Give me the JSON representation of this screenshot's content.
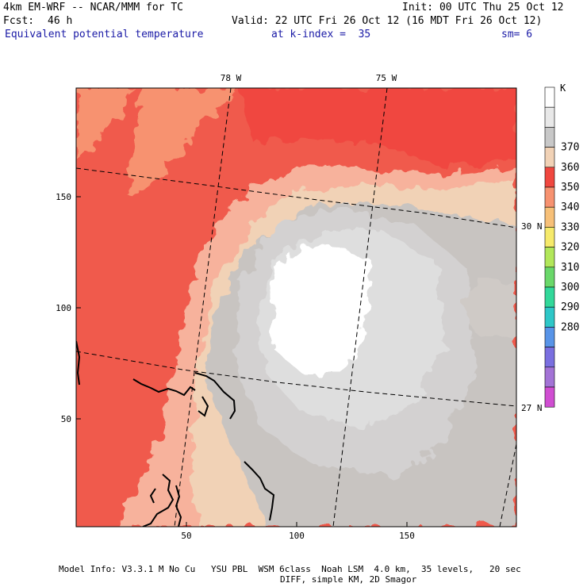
{
  "header": {
    "model_line": "4km EM-WRF -- NCAR/MMM for TC",
    "init_line": "Init: 00 UTC Thu 25 Oct 12",
    "forecast_label": "Fcst:",
    "forecast_value": "46 h",
    "valid_line": "Valid: 22 UTC Fri 26 Oct 12 (16 MDT Fri 26 Oct 12)",
    "field_name": "Equivalent potential temperature",
    "level_line": "at k-index =  35",
    "smoothing": "sm= 6"
  },
  "map": {
    "x_ticks": [
      "50",
      "100",
      "150"
    ],
    "y_ticks": [
      "150",
      "100",
      "50"
    ],
    "lon_labels": [
      "78 W",
      "75 W"
    ],
    "lat_labels": [
      "30 N",
      "27 N"
    ]
  },
  "colorbar": {
    "unit": "K",
    "labels": [
      "370",
      "360",
      "350",
      "340",
      "330",
      "320",
      "310",
      "300",
      "290",
      "280"
    ],
    "colors": [
      "#ffffff",
      "#e8e8e8",
      "#c8c8c8",
      "#f1d2b6",
      "#f0473f",
      "#f79270",
      "#f7c078",
      "#f6ea6b",
      "#b2e75a",
      "#6ad86a",
      "#32d89a",
      "#2ec7c8",
      "#5894e8",
      "#7a6fe0",
      "#a373d6",
      "#d04ed2"
    ]
  },
  "footer": {
    "line1": "Model Info: V3.3.1 M No Cu   YSU PBL  WSM 6class  Noah LSM  4.0 km,  35 levels,   20 sec",
    "line2": "DIFF, simple KM, 2D Smagor"
  }
}
